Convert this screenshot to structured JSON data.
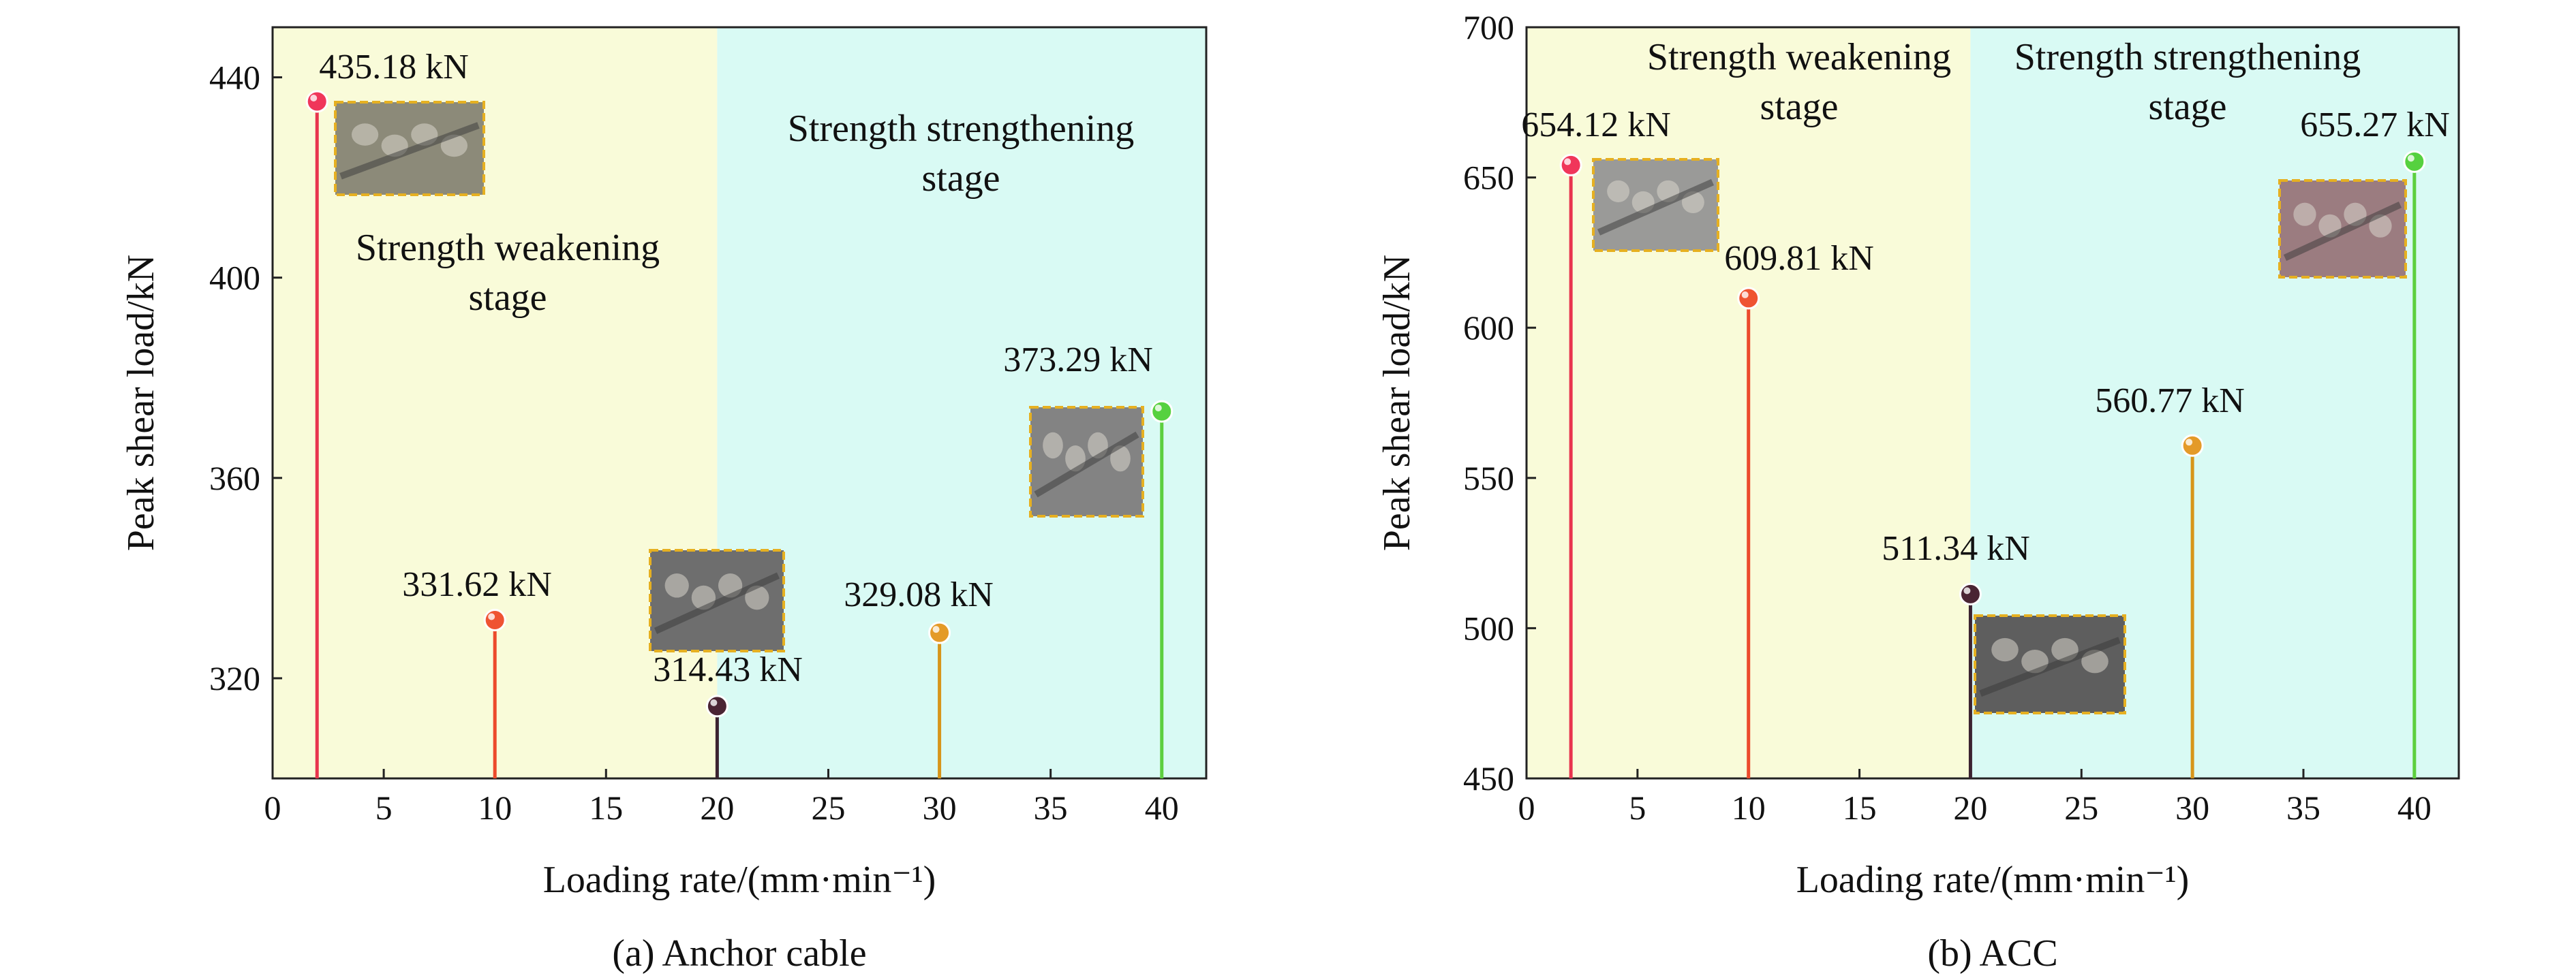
{
  "colors": {
    "weakening_bg": "#f9fbd9",
    "strengthening_bg": "#d9faf4",
    "stem_colors": [
      "#e8344e",
      "#ec4a2c",
      "#3b2230",
      "#d7951a",
      "#5dcf3e"
    ],
    "marker_colors": [
      "#f0365a",
      "#ef5332",
      "#4a2433",
      "#e49a28",
      "#56d13f"
    ]
  },
  "chart_data": [
    {
      "type": "stem",
      "caption": "(a) Anchor cable",
      "xlabel": "Loading rate/(mm·min⁻¹)",
      "ylabel": "Peak shear load/kN",
      "xlim": [
        0,
        42
      ],
      "ylim": [
        300,
        450
      ],
      "xticks": [
        0,
        5,
        10,
        15,
        20,
        25,
        30,
        35,
        40
      ],
      "yticks": [
        320,
        360,
        400,
        440
      ],
      "regions": [
        {
          "name": "weakening",
          "from": 0,
          "to": 20,
          "label_lines": [
            "Strength weakening",
            "stage"
          ]
        },
        {
          "name": "strengthening",
          "from": 20,
          "to": 42,
          "label_lines": [
            "Strength strengthening",
            "stage"
          ]
        }
      ],
      "points": [
        {
          "x": 2,
          "y": 435.18,
          "label": "435.18 kN"
        },
        {
          "x": 10,
          "y": 331.62,
          "label": "331.62 kN"
        },
        {
          "x": 20,
          "y": 314.43,
          "label": "314.43 kN"
        },
        {
          "x": 30,
          "y": 329.08,
          "label": "329.08 kN"
        },
        {
          "x": 40,
          "y": 373.29,
          "label": "373.29 kN"
        }
      ]
    },
    {
      "type": "stem",
      "caption": "(b) ACC",
      "xlabel": "Loading rate/(mm·min⁻¹)",
      "ylabel": "Peak shear load/kN",
      "xlim": [
        0,
        42
      ],
      "ylim": [
        450,
        700
      ],
      "xticks": [
        0,
        5,
        10,
        15,
        20,
        25,
        30,
        35,
        40
      ],
      "yticks": [
        450,
        500,
        550,
        600,
        650,
        700
      ],
      "regions": [
        {
          "name": "weakening",
          "from": 0,
          "to": 20,
          "label_lines": [
            "Strength weakening",
            "stage"
          ]
        },
        {
          "name": "strengthening",
          "from": 20,
          "to": 42,
          "label_lines": [
            "Strength strengthening",
            "stage"
          ]
        }
      ],
      "points": [
        {
          "x": 2,
          "y": 654.12,
          "label": "654.12 kN"
        },
        {
          "x": 10,
          "y": 609.81,
          "label": "609.81 kN"
        },
        {
          "x": 20,
          "y": 511.34,
          "label": "511.34 kN"
        },
        {
          "x": 30,
          "y": 560.77,
          "label": "560.77 kN"
        },
        {
          "x": 40,
          "y": 655.27,
          "label": "655.27 kN"
        }
      ]
    }
  ]
}
